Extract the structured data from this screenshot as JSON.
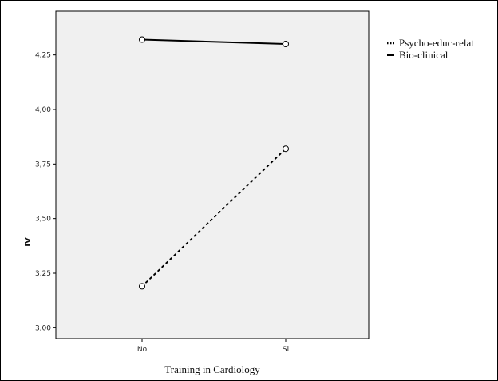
{
  "chart_data": {
    "type": "line",
    "title": "",
    "xlabel": "Training in Cardiology",
    "ylabel": "IV",
    "categories": [
      "No",
      "Si"
    ],
    "ylim": [
      2.95,
      4.45
    ],
    "yticks": [
      "3,00",
      "3,25",
      "3,50",
      "3,75",
      "4,00",
      "4,25"
    ],
    "ytick_values": [
      3.0,
      3.25,
      3.5,
      3.75,
      4.0,
      4.25
    ],
    "legend_position": "top-right, outside plot",
    "background_color": "#f0f0f0",
    "series": [
      {
        "name": "Psycho-educ-relat",
        "values": [
          3.19,
          3.82
        ],
        "line_style": "dotted",
        "color": "#000000"
      },
      {
        "name": "Bio-clinical",
        "values": [
          4.32,
          4.3
        ],
        "line_style": "solid",
        "color": "#000000"
      }
    ]
  }
}
